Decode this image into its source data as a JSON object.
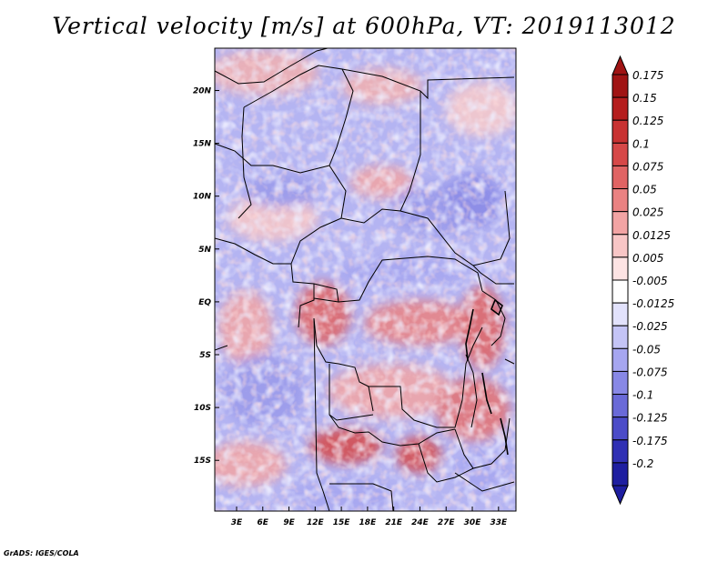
{
  "title": "Vertical velocity [m/s] at 600hPa, VT: 2019113012",
  "credit": "GrADS: IGES/COLA",
  "map": {
    "lat_ticks": [
      {
        "label": "20N",
        "lat": 20
      },
      {
        "label": "15N",
        "lat": 15
      },
      {
        "label": "10N",
        "lat": 10
      },
      {
        "label": "5N",
        "lat": 5
      },
      {
        "label": "EQ",
        "lat": 0
      },
      {
        "label": "5S",
        "lat": -5
      },
      {
        "label": "10S",
        "lat": -10
      },
      {
        "label": "15S",
        "lat": -15
      }
    ],
    "lon_ticks": [
      {
        "label": "3E",
        "lon": 3
      },
      {
        "label": "6E",
        "lon": 6
      },
      {
        "label": "9E",
        "lon": 9
      },
      {
        "label": "12E",
        "lon": 12
      },
      {
        "label": "15E",
        "lon": 15
      },
      {
        "label": "18E",
        "lon": 18
      },
      {
        "label": "21E",
        "lon": 21
      },
      {
        "label": "24E",
        "lon": 24
      },
      {
        "label": "27E",
        "lon": 27
      },
      {
        "label": "30E",
        "lon": 30
      },
      {
        "label": "33E",
        "lon": 33
      }
    ],
    "lon_range": [
      0.5,
      35.0
    ],
    "lat_range": [
      -19.8,
      24.0
    ]
  },
  "colorbar": {
    "levels": [
      {
        "label": "0.175",
        "color": "#a01414"
      },
      {
        "label": "0.15",
        "color": "#b51e1e"
      },
      {
        "label": "0.125",
        "color": "#c83232"
      },
      {
        "label": "0.1",
        "color": "#d64848"
      },
      {
        "label": "0.075",
        "color": "#e06464"
      },
      {
        "label": "0.05",
        "color": "#ea8282"
      },
      {
        "label": "0.025",
        "color": "#f2a4a4"
      },
      {
        "label": "0.0125",
        "color": "#f8c6c6"
      },
      {
        "label": "0.005",
        "color": "#fde3e3"
      },
      {
        "label": "-0.005",
        "color": "#ffffff"
      },
      {
        "label": "-0.0125",
        "color": "#e2e2fc"
      },
      {
        "label": "-0.025",
        "color": "#c4c4f6"
      },
      {
        "label": "-0.05",
        "color": "#a6a6f0"
      },
      {
        "label": "-0.075",
        "color": "#8888e6"
      },
      {
        "label": "-0.1",
        "color": "#6a6ad8"
      },
      {
        "label": "-0.125",
        "color": "#4c4cc8"
      },
      {
        "label": "-0.175",
        "color": "#3030b4"
      },
      {
        "label": "-0.2",
        "color": "#1e1ea0"
      }
    ],
    "top_cap_color": "#a01414",
    "bottom_cap_color": "#1e1ea0"
  }
}
